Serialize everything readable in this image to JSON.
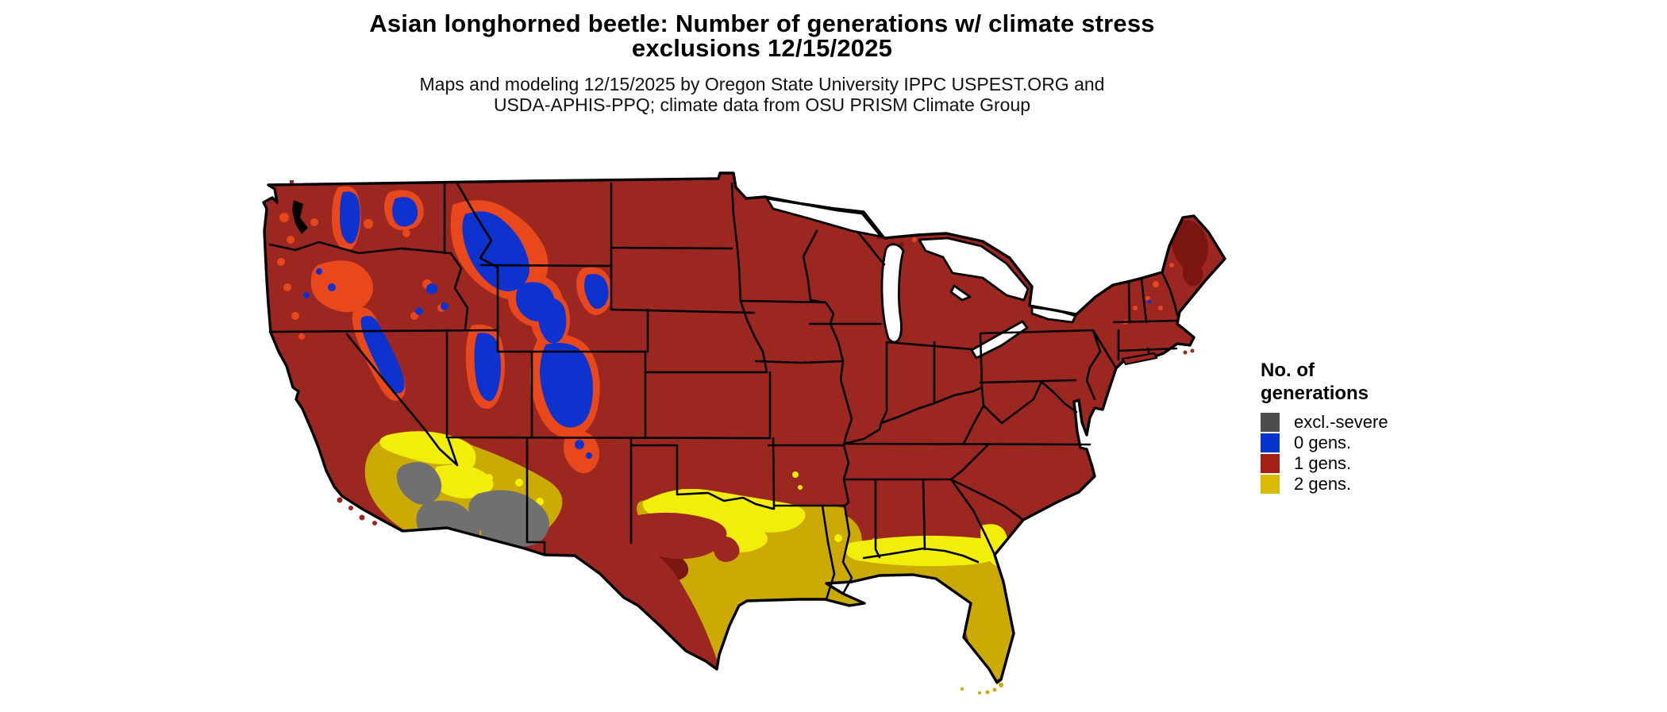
{
  "header": {
    "title_line1": "Asian longhorned beetle: Number of generations w/ climate stress",
    "title_line2": "exclusions 12/15/2025",
    "subtitle_line1": "Maps and modeling 12/15/2025 by Oregon State University IPPC USPEST.ORG and",
    "subtitle_line2": "USDA-APHIS-PPQ; climate data from OSU PRISM Climate Group"
  },
  "legend": {
    "title_line1": "No. of",
    "title_line2": "generations",
    "items": [
      {
        "label": "excl.-severe",
        "color": "#4D4D4D"
      },
      {
        "label": "0 gens.",
        "color": "#0334CC"
      },
      {
        "label": "1 gens.",
        "color": "#A42016"
      },
      {
        "label": "2 gens.",
        "color": "#D8BC00"
      }
    ]
  },
  "colors": {
    "map_red": "#9C2720",
    "map_blue": "#0E32CE",
    "map_orange": "#E8481C",
    "map_gold": "#CBAA04",
    "map_yellow": "#F2EE0B",
    "map_gray": "#707070",
    "map_maroon": "#7A150F",
    "background": "#FFFFFF",
    "border": "#000000"
  }
}
